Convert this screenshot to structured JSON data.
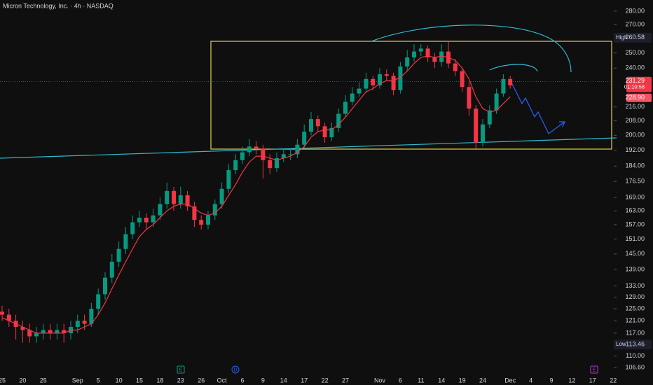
{
  "chart_data": {
    "type": "candlestick",
    "title": "Micron Technology, Inc. · 4h · NASDAQ",
    "log_scale": true,
    "ylim": [
      104.6,
      288.6
    ],
    "yticks": [
      {
        "value": 280,
        "label": "280.00"
      },
      {
        "value": 270,
        "label": "270.00"
      },
      {
        "value": 250,
        "label": "250.00"
      },
      {
        "value": 240,
        "label": "240.00"
      },
      {
        "value": 216,
        "label": "216.00"
      },
      {
        "value": 208,
        "label": "208.00"
      },
      {
        "value": 200,
        "label": "200.00"
      },
      {
        "value": 192,
        "label": "192.00"
      },
      {
        "value": 184,
        "label": "184.00"
      },
      {
        "value": 176.5,
        "label": "176.50"
      },
      {
        "value": 169,
        "label": "169.00"
      },
      {
        "value": 163,
        "label": "163.00"
      },
      {
        "value": 157,
        "label": "157.00"
      },
      {
        "value": 151,
        "label": "151.00"
      },
      {
        "value": 145,
        "label": "145.00"
      },
      {
        "value": 139,
        "label": "139.00"
      },
      {
        "value": 133,
        "label": "133.00"
      },
      {
        "value": 129,
        "label": "129.00"
      },
      {
        "value": 125,
        "label": "125.00"
      },
      {
        "value": 121,
        "label": "121.00"
      },
      {
        "value": 117,
        "label": "117.00"
      },
      {
        "value": 110,
        "label": "110.00"
      },
      {
        "value": 106.6,
        "label": "106.60"
      }
    ],
    "categories": [
      "25",
      null,
      null,
      "20",
      null,
      null,
      "25",
      null,
      null,
      null,
      null,
      "Sep",
      null,
      null,
      "5",
      null,
      null,
      "10",
      null,
      null,
      "15",
      null,
      null,
      "18",
      null,
      null,
      "23",
      null,
      null,
      "26",
      null,
      null,
      "Oct",
      null,
      null,
      "6",
      null,
      null,
      "9",
      null,
      null,
      "14",
      null,
      null,
      "17",
      null,
      null,
      "22",
      null,
      null,
      "27",
      null,
      null,
      null,
      null,
      "Nov",
      null,
      null,
      "6",
      null,
      null,
      "11",
      null,
      null,
      "14",
      null,
      null,
      "19",
      null,
      null,
      "24",
      null,
      null,
      null,
      "Dec",
      null,
      null,
      "4",
      null,
      null,
      "9",
      null,
      null,
      "12",
      null,
      null,
      "17",
      null,
      null,
      "22"
    ],
    "up_color": "#089981",
    "down_color": "#f23645",
    "open": [
      124,
      123,
      121,
      119,
      118,
      116,
      117,
      118,
      117,
      118,
      117,
      119,
      121,
      120,
      125,
      130,
      136,
      142,
      147,
      153,
      158,
      160,
      158,
      161,
      166,
      172,
      166,
      170,
      165,
      159,
      157,
      161,
      166,
      173,
      182,
      187,
      191,
      194,
      193,
      187,
      183,
      188,
      190,
      190,
      195,
      202,
      209,
      205,
      199,
      204,
      212,
      219,
      224,
      227,
      233,
      229,
      236,
      235,
      226,
      241,
      247,
      251,
      253,
      247,
      244,
      251,
      243,
      238,
      228,
      215,
      196,
      206,
      214,
      224,
      233,
      null,
      null,
      null,
      null,
      null,
      null,
      null,
      null,
      null,
      null,
      null,
      null,
      null,
      null,
      null
    ],
    "high": [
      126,
      125,
      123,
      121,
      120,
      119,
      120,
      120,
      120,
      120,
      121,
      123,
      123,
      127,
      132,
      138,
      145,
      150,
      156,
      161,
      163,
      162,
      164,
      169,
      176,
      174,
      174,
      172,
      167,
      161,
      163,
      168,
      176,
      185,
      190,
      194,
      198,
      197,
      195,
      190,
      191,
      193,
      193,
      198,
      206,
      213,
      211,
      207,
      207,
      215,
      223,
      228,
      231,
      237,
      235,
      240,
      239,
      237,
      244,
      252,
      256,
      256,
      255,
      250,
      256,
      258,
      246,
      240,
      231,
      217,
      209,
      217,
      227,
      236,
      235,
      null,
      null,
      null,
      null,
      null,
      null,
      null,
      null,
      null,
      null,
      null,
      null,
      null,
      null,
      null
    ],
    "low": [
      121,
      119,
      115,
      114,
      114,
      114,
      115,
      115,
      115,
      114,
      115,
      117,
      118,
      119,
      123,
      128,
      134,
      140,
      145,
      151,
      156,
      155,
      156,
      159,
      164,
      163,
      164,
      163,
      156,
      155,
      155,
      159,
      164,
      171,
      180,
      185,
      189,
      190,
      178,
      180,
      181,
      186,
      187,
      188,
      193,
      200,
      202,
      196,
      197,
      202,
      210,
      217,
      222,
      225,
      226,
      227,
      232,
      223,
      224,
      238,
      244,
      248,
      244,
      240,
      241,
      240,
      235,
      225,
      211,
      193,
      194,
      204,
      212,
      222,
      227,
      null,
      null,
      null,
      null,
      null,
      null,
      null,
      null,
      null,
      null,
      null,
      null,
      null,
      null,
      null
    ],
    "close": [
      123,
      121,
      119,
      118,
      116,
      117,
      118,
      117,
      118,
      117,
      119,
      121,
      120,
      125,
      130,
      136,
      142,
      147,
      153,
      158,
      160,
      158,
      161,
      166,
      172,
      166,
      170,
      165,
      159,
      157,
      161,
      166,
      173,
      182,
      187,
      191,
      194,
      193,
      187,
      183,
      188,
      190,
      190,
      195,
      202,
      209,
      205,
      199,
      204,
      212,
      219,
      224,
      227,
      233,
      229,
      236,
      235,
      226,
      241,
      247,
      251,
      253,
      247,
      244,
      251,
      243,
      238,
      228,
      215,
      196,
      206,
      214,
      224,
      233,
      229,
      null,
      null,
      null,
      null,
      null,
      null,
      null,
      null,
      null,
      null,
      null,
      null,
      null,
      null,
      null
    ],
    "moving_average": {
      "color": "#f23645",
      "values": [
        122,
        121,
        120,
        119,
        118,
        117,
        117,
        117,
        117,
        117,
        118,
        118,
        119,
        120,
        123,
        127,
        132,
        137,
        142,
        147,
        152,
        155,
        157,
        160,
        163,
        165,
        166,
        166,
        164,
        162,
        161,
        162,
        165,
        170,
        175,
        181,
        186,
        189,
        189,
        188,
        187,
        188,
        189,
        191,
        194,
        199,
        202,
        203,
        203,
        206,
        210,
        215,
        220,
        225,
        227,
        230,
        232,
        232,
        234,
        238,
        243,
        247,
        248,
        247,
        248,
        247,
        245,
        240,
        233,
        222,
        215,
        213,
        214,
        218,
        222,
        null,
        null,
        null,
        null,
        null,
        null,
        null,
        null,
        null,
        null,
        null,
        null,
        null,
        null,
        null
      ]
    },
    "high_marker": {
      "label": "High",
      "value": 260.58
    },
    "low_marker": {
      "label": "Low",
      "value": 113.46
    },
    "last_price": 231.29,
    "countdown": "01:10:58",
    "ma_price": {
      "value": 228.9,
      "label": "228.90"
    },
    "events": [
      "E",
      "D",
      "E"
    ]
  }
}
